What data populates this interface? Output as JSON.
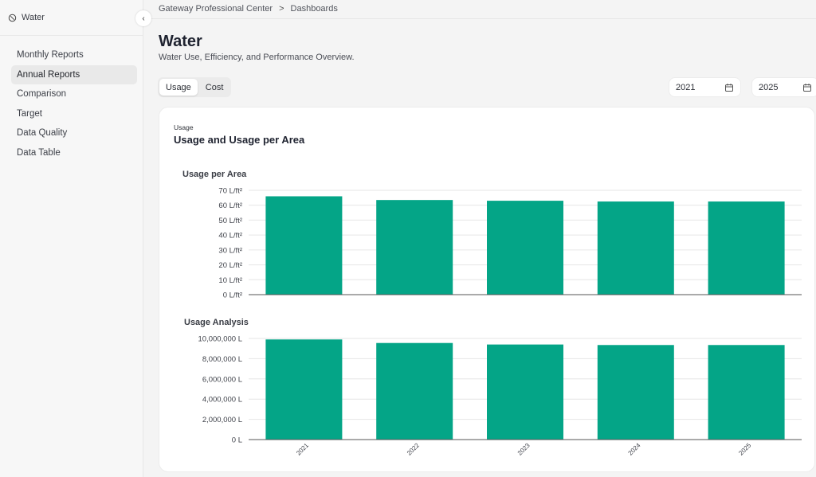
{
  "sidebar": {
    "title": "Water",
    "collapse_glyph": "‹",
    "items": [
      {
        "label": "Monthly Reports",
        "active": false
      },
      {
        "label": "Annual Reports",
        "active": true
      },
      {
        "label": "Comparison",
        "active": false
      },
      {
        "label": "Target",
        "active": false
      },
      {
        "label": "Data Quality",
        "active": false
      },
      {
        "label": "Data Table",
        "active": false
      }
    ]
  },
  "breadcrumb": {
    "items": [
      "Gateway Professional Center",
      "Dashboards"
    ],
    "separator": ">"
  },
  "header": {
    "title": "Water",
    "subtitle": "Water Use, Efficiency, and Performance Overview."
  },
  "toggle": {
    "options": [
      {
        "label": "Usage",
        "active": true
      },
      {
        "label": "Cost",
        "active": false
      }
    ]
  },
  "date_range": {
    "from": "2021",
    "to": "2025",
    "icon": "calendar-icon"
  },
  "card": {
    "kicker": "Usage",
    "title": "Usage and Usage per Area"
  },
  "colors": {
    "bar": "#04a587",
    "accent": "#04a587"
  },
  "chart_data": [
    {
      "type": "bar",
      "title": "Usage per Area",
      "categories": [
        "2021",
        "2022",
        "2023",
        "2024",
        "2025"
      ],
      "values": [
        66,
        63.5,
        63,
        62.5,
        62.5
      ],
      "unit": "L/ft²",
      "ylim": [
        0,
        70
      ],
      "yticks": [
        "0 L/ft²",
        "10 L/ft²",
        "20 L/ft²",
        "30 L/ft²",
        "40 L/ft²",
        "50 L/ft²",
        "60 L/ft²",
        "70 L/ft²"
      ],
      "grid": true
    },
    {
      "type": "bar",
      "title": "Usage Analysis",
      "categories": [
        "2021",
        "2022",
        "2023",
        "2024",
        "2025"
      ],
      "values": [
        9900000,
        9550000,
        9400000,
        9350000,
        9350000
      ],
      "unit": "L",
      "ylim": [
        0,
        10000000
      ],
      "yticks": [
        "0 L",
        "2,000,000 L",
        "4,000,000 L",
        "6,000,000 L",
        "8,000,000 L",
        "10,000,000 L"
      ],
      "grid": true
    }
  ]
}
